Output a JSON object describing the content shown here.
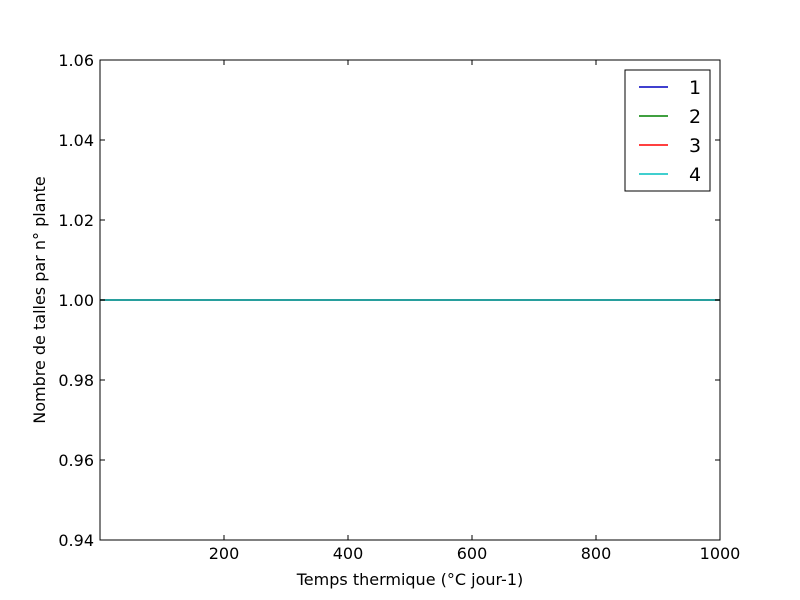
{
  "chart_data": {
    "type": "line",
    "title": "",
    "xlabel": "Temps thermique (°C jour-1)",
    "ylabel": "Nombre de talles par n° plante",
    "xlim": [
      0,
      1000
    ],
    "ylim": [
      0.94,
      1.06
    ],
    "xticks": [
      200,
      400,
      600,
      800,
      1000
    ],
    "xtick_labels": [
      "200",
      "400",
      "600",
      "800",
      "1000"
    ],
    "yticks": [
      0.94,
      0.96,
      0.98,
      1.0,
      1.02,
      1.04,
      1.06
    ],
    "ytick_labels": [
      "0.94",
      "0.96",
      "0.98",
      "1.00",
      "1.02",
      "1.04",
      "1.06"
    ],
    "grid": false,
    "legend_position": "top-right",
    "series": [
      {
        "name": "1",
        "color": "#0000bf",
        "x": [
          0,
          1000
        ],
        "y": [
          1.0,
          1.0
        ]
      },
      {
        "name": "2",
        "color": "#008000",
        "x": [
          0,
          1000
        ],
        "y": [
          1.0,
          1.0
        ]
      },
      {
        "name": "3",
        "color": "#ff0000",
        "x": [
          0,
          1000
        ],
        "y": [
          1.0,
          1.0
        ]
      },
      {
        "name": "4",
        "color": "#00bfbf",
        "x": [
          0,
          1000
        ],
        "y": [
          1.0,
          1.0
        ]
      }
    ]
  }
}
